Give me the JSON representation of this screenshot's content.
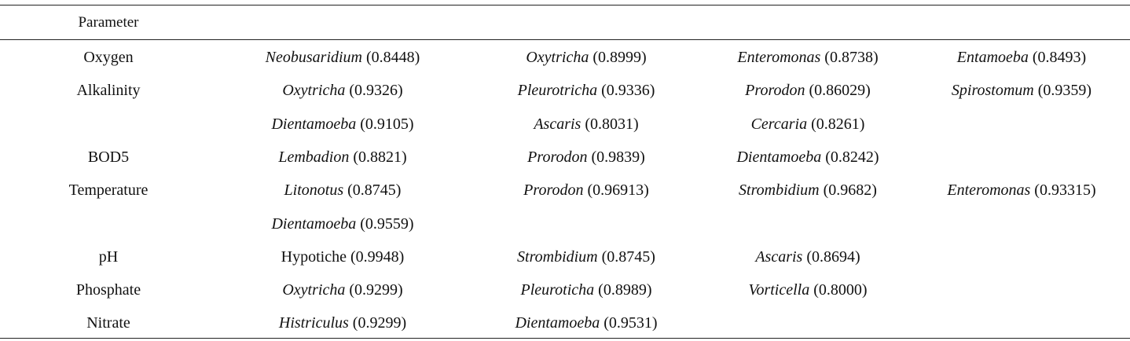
{
  "table": {
    "header": "Parameter",
    "rows": [
      {
        "parameter": "Oxygen",
        "entries": [
          {
            "name": "Neobusaridium",
            "value": "(0.8448)",
            "italic": true
          },
          {
            "name": "Oxytricha",
            "value": "(0.8999)",
            "italic": true
          },
          {
            "name": "Enteromonas",
            "value": "(0.8738)",
            "italic": true
          },
          {
            "name": "Entamoeba",
            "value": "(0.8493)",
            "italic": true
          }
        ]
      },
      {
        "parameter": "Alkalinity",
        "entries": [
          {
            "name": "Oxytricha",
            "value": "(0.9326)",
            "italic": true
          },
          {
            "name": "Pleurotricha",
            "value": "(0.9336)",
            "italic": true
          },
          {
            "name": "Prorodon",
            "value": "(0.86029)",
            "italic": true
          },
          {
            "name": "Spirostomum",
            "value": "(0.9359)",
            "italic": true
          }
        ]
      },
      {
        "parameter": "",
        "entries": [
          {
            "name": "Dientamoeba",
            "value": "(0.9105)",
            "italic": true
          },
          {
            "name": "Ascaris",
            "value": "(0.8031)",
            "italic": true
          },
          {
            "name": "Cercaria",
            "value": "(0.8261)",
            "italic": true
          }
        ]
      },
      {
        "parameter": "BOD5",
        "entries": [
          {
            "name": "Lembadion",
            "value": "(0.8821)",
            "italic": true
          },
          {
            "name": "Prorodon",
            "value": "(0.9839)",
            "italic": true
          },
          {
            "name": "Dientamoeba",
            "value": "(0.8242)",
            "italic": true
          }
        ]
      },
      {
        "parameter": "Temperature",
        "entries": [
          {
            "name": "Litonotus",
            "value": "(0.8745)",
            "italic": true
          },
          {
            "name": "Prorodon",
            "value": "(0.96913)",
            "italic": true
          },
          {
            "name": "Strombidium",
            "value": "(0.9682)",
            "italic": true
          },
          {
            "name": "Enteromonas",
            "value": "(0.93315)",
            "italic": true
          }
        ]
      },
      {
        "parameter": "",
        "entries": [
          {
            "name": "Dientamoeba",
            "value": "(0.9559)",
            "italic": true
          }
        ]
      },
      {
        "parameter": "pH",
        "entries": [
          {
            "name": "Hypotiche",
            "value": "(0.9948)",
            "italic": false
          },
          {
            "name": "Strombidium",
            "value": "(0.8745)",
            "italic": true
          },
          {
            "name": "Ascaris",
            "value": "(0.8694)",
            "italic": true
          }
        ]
      },
      {
        "parameter": "Phosphate",
        "entries": [
          {
            "name": "Oxytricha",
            "value": "(0.9299)",
            "italic": true
          },
          {
            "name": "Pleuroticha",
            "value": "(0.8989)",
            "italic": true
          },
          {
            "name": "Vorticella",
            "value": "(0.8000)",
            "italic": true
          }
        ]
      },
      {
        "parameter": "Nitrate",
        "entries": [
          {
            "name": "Histriculus",
            "value": "(0.9299)",
            "italic": true
          },
          {
            "name": "Dientamoeba",
            "value": "(0.9531)",
            "italic": true
          }
        ]
      }
    ]
  }
}
